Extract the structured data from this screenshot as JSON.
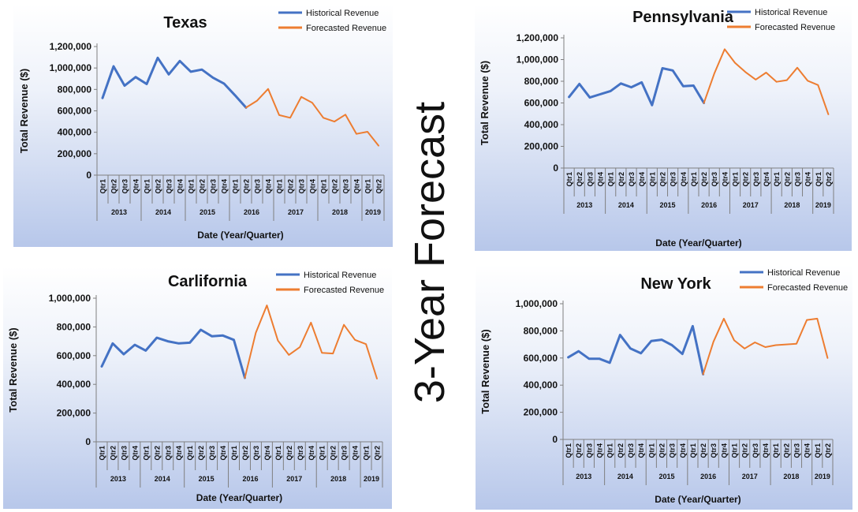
{
  "page_title": "3-Year Forecast",
  "colors": {
    "historical": "#4472C4",
    "forecast": "#ED7D31",
    "axis": "#7f7f7f",
    "text": "#111111"
  },
  "chart_data": [
    {
      "type": "line",
      "title": "Texas",
      "xlabel": "Date (Year/Quarter)",
      "ylabel": "Total Revenue ($)",
      "ylim": [
        0,
        1200000
      ],
      "yticks": [
        "0",
        "200,000",
        "400,000",
        "600,000",
        "800,000",
        "1,000,000",
        "1,200,000"
      ],
      "legend": "top-right",
      "quarters": [
        "Qtr1",
        "Qtr2",
        "Qtr3",
        "Qtr4",
        "Qtr1",
        "Qtr2",
        "Qtr3",
        "Qtr4",
        "Qtr1",
        "Qtr2",
        "Qtr3",
        "Qtr4",
        "Qtr1",
        "Qtr2",
        "Qtr3",
        "Qtr4",
        "Qtr1",
        "Qtr2",
        "Qtr3",
        "Qtr4",
        "Qtr1",
        "Qtr2",
        "Qtr3",
        "Qtr4",
        "Qtr1",
        "Qtr2"
      ],
      "years": [
        "2013",
        "2014",
        "2015",
        "2016",
        "2017",
        "2018",
        "2019"
      ],
      "series": [
        {
          "name": "Historical Revenue",
          "start": 0,
          "values": [
            720000,
            1015000,
            835000,
            915000,
            850000,
            1095000,
            940000,
            1065000,
            965000,
            985000,
            910000,
            855000,
            745000,
            630000
          ]
        },
        {
          "name": "Forecasted Revenue",
          "start": 13,
          "values": [
            630000,
            695000,
            805000,
            560000,
            535000,
            730000,
            675000,
            535000,
            500000,
            565000,
            385000,
            405000,
            275000
          ]
        }
      ]
    },
    {
      "type": "line",
      "title": "Pennsylvania",
      "xlabel": "Date (Year/Quarter)",
      "ylabel": "Total Revenue ($)",
      "ylim": [
        0,
        1200000
      ],
      "yticks": [
        "0",
        "200,000",
        "400,000",
        "600,000",
        "800,000",
        "1,000,000",
        "1,200,000"
      ],
      "legend": "top-right",
      "quarters": [
        "Qtr1",
        "Qtr2",
        "Qtr3",
        "Qtr4",
        "Qtr1",
        "Qtr2",
        "Qtr3",
        "Qtr4",
        "Qtr1",
        "Qtr2",
        "Qtr3",
        "Qtr4",
        "Qtr1",
        "Qtr2",
        "Qtr3",
        "Qtr4",
        "Qtr1",
        "Qtr2",
        "Qtr3",
        "Qtr4",
        "Qtr1",
        "Qtr2",
        "Qtr3",
        "Qtr4",
        "Qtr1",
        "Qtr2"
      ],
      "years": [
        "2013",
        "2014",
        "2015",
        "2016",
        "2017",
        "2018",
        "2019"
      ],
      "series": [
        {
          "name": "Historical Revenue",
          "start": 0,
          "values": [
            655000,
            775000,
            650000,
            680000,
            710000,
            780000,
            745000,
            790000,
            580000,
            920000,
            900000,
            755000,
            760000,
            600000
          ]
        },
        {
          "name": "Forecasted Revenue",
          "start": 13,
          "values": [
            600000,
            870000,
            1095000,
            970000,
            885000,
            815000,
            880000,
            795000,
            810000,
            925000,
            805000,
            765000,
            495000
          ]
        }
      ]
    },
    {
      "type": "line",
      "title": "Carlifornia",
      "xlabel": "Date (Year/Quarter)",
      "ylabel": "Total Revenue ($)",
      "ylim": [
        0,
        1000000
      ],
      "yticks": [
        "0",
        "200,000",
        "400,000",
        "600,000",
        "800,000",
        "1,000,000"
      ],
      "legend": "top-right",
      "quarters": [
        "Qtr1",
        "Qtr2",
        "Qtr3",
        "Qtr4",
        "Qtr1",
        "Qtr2",
        "Qtr3",
        "Qtr4",
        "Qtr1",
        "Qtr2",
        "Qtr3",
        "Qtr4",
        "Qtr1",
        "Qtr2",
        "Qtr3",
        "Qtr4",
        "Qtr1",
        "Qtr2",
        "Qtr3",
        "Qtr4",
        "Qtr1",
        "Qtr2",
        "Qtr3",
        "Qtr4",
        "Qtr1",
        "Qtr2"
      ],
      "years": [
        "2013",
        "2014",
        "2015",
        "2016",
        "2017",
        "2018",
        "2019"
      ],
      "series": [
        {
          "name": "Historical Revenue",
          "start": 0,
          "values": [
            525000,
            685000,
            610000,
            675000,
            635000,
            725000,
            700000,
            685000,
            690000,
            780000,
            735000,
            740000,
            710000,
            445000
          ]
        },
        {
          "name": "Forecasted Revenue",
          "start": 13,
          "values": [
            445000,
            760000,
            950000,
            705000,
            605000,
            660000,
            830000,
            620000,
            615000,
            815000,
            710000,
            680000,
            440000
          ]
        }
      ]
    },
    {
      "type": "line",
      "title": "New York",
      "xlabel": "Date (Year/Quarter)",
      "ylabel": "Total Revenue ($)",
      "ylim": [
        0,
        1000000
      ],
      "yticks": [
        "0",
        "200,000",
        "400,000",
        "600,000",
        "800,000",
        "1,000,000"
      ],
      "legend": "top-right",
      "quarters": [
        "Qtr1",
        "Qtr2",
        "Qtr3",
        "Qtr4",
        "Qtr1",
        "Qtr2",
        "Qtr3",
        "Qtr4",
        "Qtr1",
        "Qtr2",
        "Qtr3",
        "Qtr4",
        "Qtr1",
        "Qtr2",
        "Qtr3",
        "Qtr4",
        "Qtr1",
        "Qtr2",
        "Qtr3",
        "Qtr4",
        "Qtr1",
        "Qtr2",
        "Qtr3",
        "Qtr4",
        "Qtr1",
        "Qtr2"
      ],
      "years": [
        "2013",
        "2014",
        "2015",
        "2016",
        "2017",
        "2018",
        "2019"
      ],
      "series": [
        {
          "name": "Historical Revenue",
          "start": 0,
          "values": [
            605000,
            650000,
            595000,
            595000,
            565000,
            770000,
            670000,
            635000,
            725000,
            735000,
            695000,
            630000,
            835000,
            480000
          ]
        },
        {
          "name": "Forecasted Revenue",
          "start": 13,
          "values": [
            480000,
            720000,
            890000,
            730000,
            670000,
            715000,
            680000,
            695000,
            700000,
            705000,
            880000,
            890000,
            600000
          ]
        }
      ]
    }
  ]
}
